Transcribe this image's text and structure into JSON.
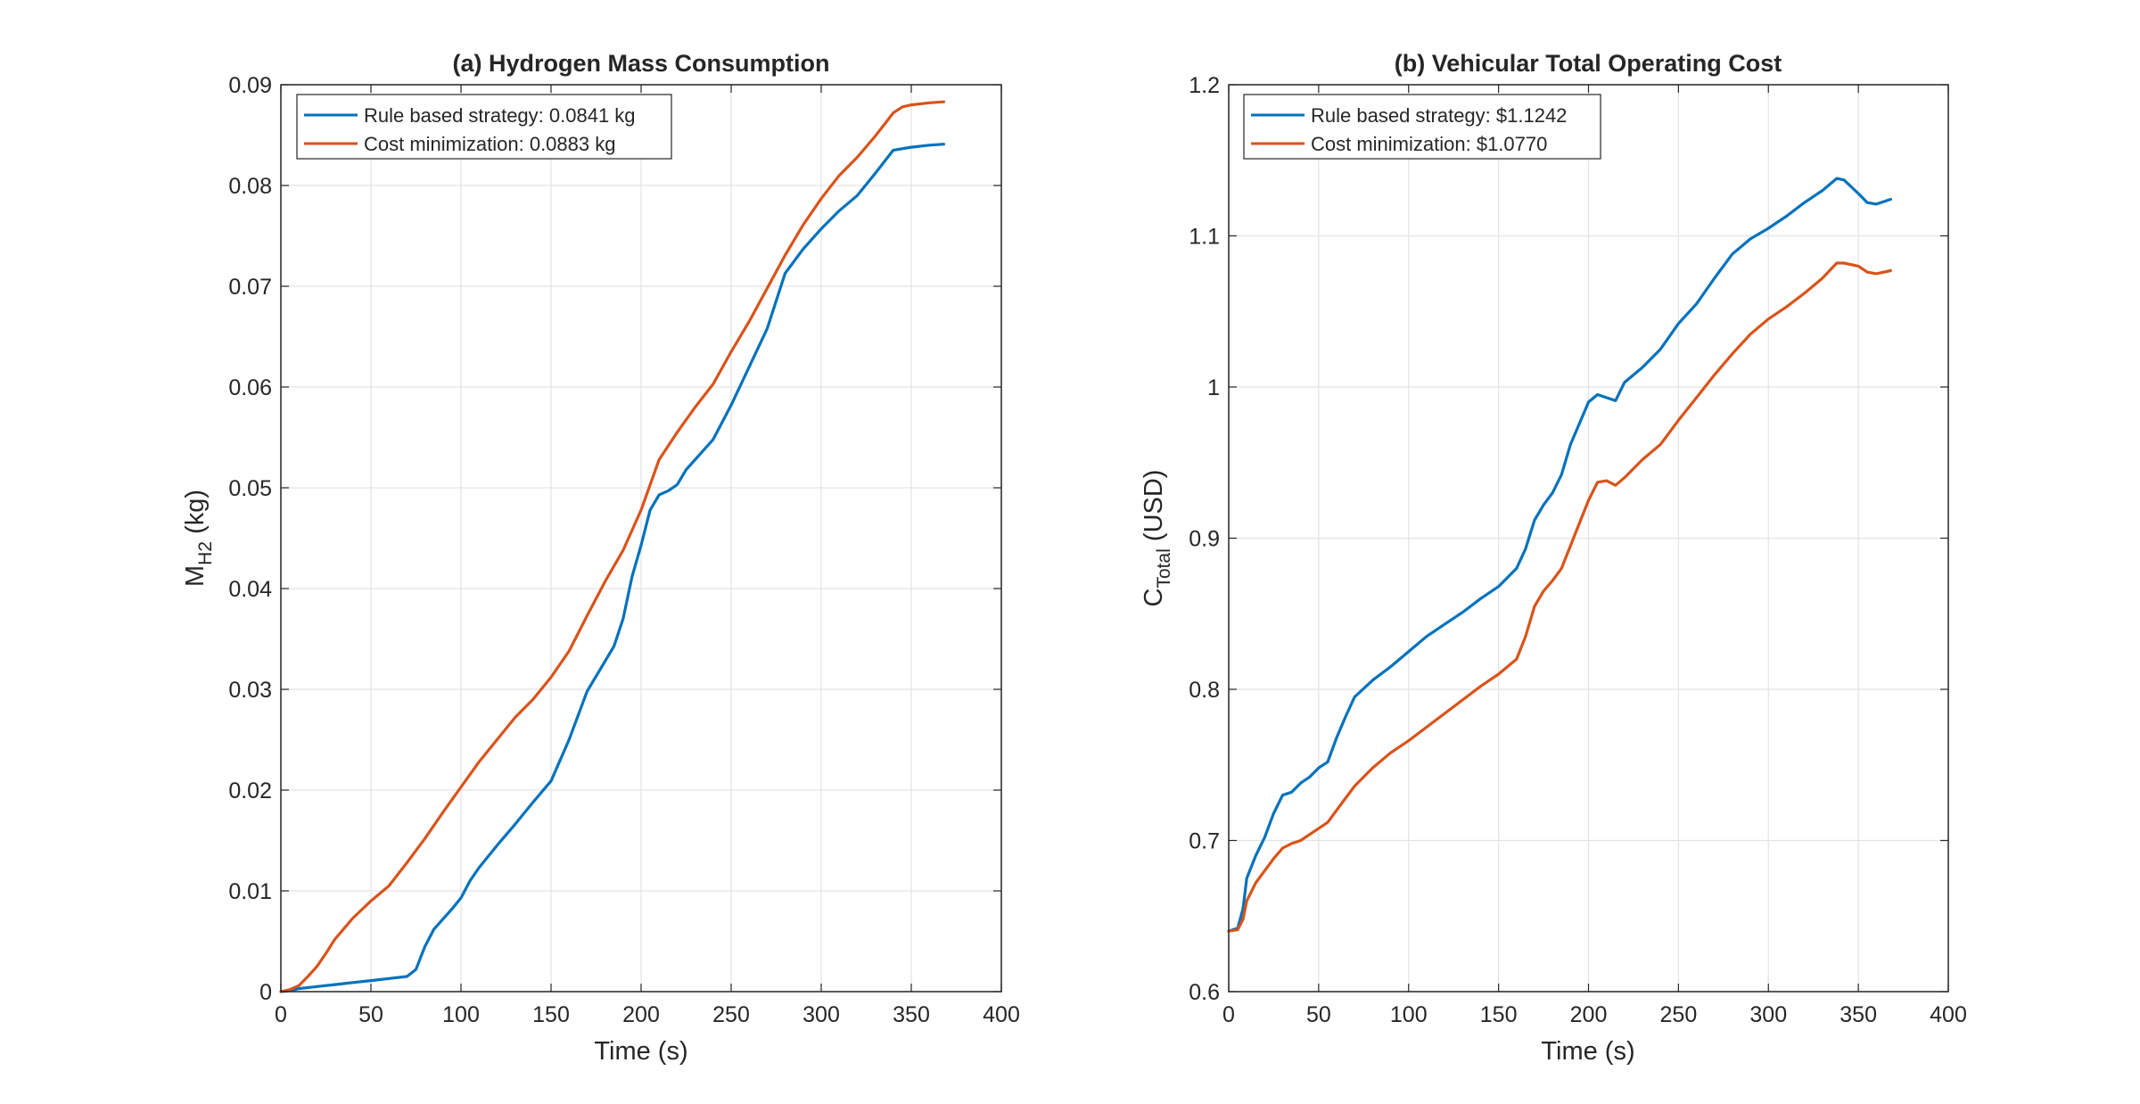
{
  "chart_data": [
    {
      "type": "line",
      "title": "(a) Hydrogen Mass Consumption",
      "xlabel": "Time (s)",
      "ylabel_main": "M",
      "ylabel_sub": "H2",
      "ylabel_unit": " (kg)",
      "xlim": [
        0,
        400
      ],
      "ylim": [
        0,
        0.09
      ],
      "xticks": [
        "0",
        "50",
        "100",
        "150",
        "200",
        "250",
        "300",
        "350",
        "400"
      ],
      "yticks": [
        "0",
        "0.01",
        "0.02",
        "0.03",
        "0.04",
        "0.05",
        "0.06",
        "0.07",
        "0.08",
        "0.09"
      ],
      "grid": true,
      "legend_position": "top-left",
      "series": [
        {
          "name": "Rule based strategy: 0.0841 kg",
          "color": "#0072BD",
          "x": [
            0,
            5,
            10,
            20,
            30,
            40,
            50,
            60,
            70,
            75,
            80,
            85,
            90,
            95,
            100,
            105,
            110,
            120,
            130,
            140,
            150,
            160,
            170,
            180,
            185,
            190,
            195,
            200,
            205,
            210,
            215,
            220,
            225,
            230,
            240,
            250,
            260,
            270,
            280,
            290,
            300,
            310,
            320,
            330,
            340,
            350,
            360,
            368
          ],
          "y": [
            0,
            0.0001,
            0.0003,
            0.0005,
            0.0007,
            0.0009,
            0.0011,
            0.0013,
            0.0015,
            0.0022,
            0.0045,
            0.0062,
            0.0072,
            0.0082,
            0.0093,
            0.011,
            0.0123,
            0.0145,
            0.0166,
            0.0188,
            0.0209,
            0.025,
            0.0298,
            0.0328,
            0.0343,
            0.037,
            0.0412,
            0.0443,
            0.0478,
            0.0493,
            0.0497,
            0.0503,
            0.0518,
            0.0528,
            0.0548,
            0.0582,
            0.062,
            0.0658,
            0.0713,
            0.0737,
            0.0757,
            0.0775,
            0.079,
            0.0812,
            0.0835,
            0.0838,
            0.084,
            0.0841
          ]
        },
        {
          "name": "Cost minimization: 0.0883 kg",
          "color": "#D95319",
          "x": [
            0,
            5,
            10,
            15,
            20,
            25,
            30,
            40,
            50,
            60,
            70,
            80,
            90,
            100,
            110,
            120,
            130,
            140,
            150,
            160,
            170,
            180,
            190,
            200,
            210,
            220,
            230,
            240,
            250,
            260,
            270,
            280,
            290,
            300,
            310,
            320,
            330,
            340,
            345,
            350,
            360,
            368
          ],
          "y": [
            0,
            0.0002,
            0.0006,
            0.0015,
            0.0025,
            0.0038,
            0.0052,
            0.0073,
            0.009,
            0.0105,
            0.0128,
            0.0152,
            0.0178,
            0.0203,
            0.0228,
            0.025,
            0.0272,
            0.029,
            0.0312,
            0.0338,
            0.0373,
            0.0407,
            0.0438,
            0.0478,
            0.0528,
            0.0555,
            0.058,
            0.0603,
            0.0635,
            0.0665,
            0.0698,
            0.0731,
            0.0761,
            0.0787,
            0.081,
            0.0828,
            0.0849,
            0.0872,
            0.0878,
            0.088,
            0.0882,
            0.0883
          ]
        }
      ]
    },
    {
      "type": "line",
      "title": "(b) Vehicular Total Operating Cost",
      "xlabel": "Time (s)",
      "ylabel_main": "C",
      "ylabel_sub": "Total",
      "ylabel_unit": " (USD)",
      "xlim": [
        0,
        400
      ],
      "ylim": [
        0.6,
        1.2
      ],
      "xticks": [
        "0",
        "50",
        "100",
        "150",
        "200",
        "250",
        "300",
        "350",
        "400"
      ],
      "yticks": [
        "0.6",
        "0.7",
        "0.8",
        "0.9",
        "1",
        "1.1",
        "1.2"
      ],
      "grid": true,
      "legend_position": "top-left",
      "series": [
        {
          "name": "Rule based strategy: $1.1242",
          "color": "#0072BD",
          "x": [
            0,
            5,
            8,
            10,
            15,
            20,
            25,
            30,
            35,
            40,
            45,
            50,
            55,
            60,
            65,
            70,
            80,
            90,
            100,
            110,
            120,
            130,
            140,
            150,
            160,
            165,
            170,
            175,
            180,
            185,
            190,
            195,
            200,
            205,
            210,
            215,
            220,
            230,
            240,
            250,
            260,
            270,
            280,
            290,
            300,
            310,
            320,
            330,
            338,
            342,
            350,
            355,
            360,
            368
          ],
          "y": [
            0.64,
            0.642,
            0.655,
            0.675,
            0.69,
            0.702,
            0.718,
            0.73,
            0.732,
            0.738,
            0.742,
            0.748,
            0.752,
            0.768,
            0.782,
            0.795,
            0.806,
            0.815,
            0.825,
            0.835,
            0.843,
            0.851,
            0.86,
            0.868,
            0.88,
            0.893,
            0.912,
            0.922,
            0.93,
            0.942,
            0.962,
            0.976,
            0.99,
            0.995,
            0.993,
            0.991,
            1.003,
            1.013,
            1.025,
            1.042,
            1.055,
            1.072,
            1.088,
            1.098,
            1.105,
            1.113,
            1.122,
            1.13,
            1.138,
            1.137,
            1.128,
            1.122,
            1.121,
            1.1242
          ]
        },
        {
          "name": "Cost minimization: $1.0770",
          "color": "#D95319",
          "x": [
            0,
            5,
            8,
            10,
            15,
            20,
            25,
            30,
            35,
            40,
            45,
            50,
            55,
            60,
            65,
            70,
            80,
            90,
            100,
            110,
            120,
            130,
            140,
            150,
            160,
            165,
            170,
            175,
            180,
            185,
            190,
            195,
            200,
            205,
            210,
            215,
            220,
            230,
            240,
            250,
            260,
            270,
            280,
            290,
            300,
            310,
            320,
            330,
            338,
            342,
            350,
            355,
            360,
            368
          ],
          "y": [
            0.64,
            0.641,
            0.648,
            0.66,
            0.672,
            0.68,
            0.688,
            0.695,
            0.698,
            0.7,
            0.704,
            0.708,
            0.712,
            0.72,
            0.728,
            0.736,
            0.748,
            0.758,
            0.766,
            0.775,
            0.784,
            0.793,
            0.802,
            0.81,
            0.82,
            0.835,
            0.855,
            0.865,
            0.872,
            0.88,
            0.895,
            0.91,
            0.925,
            0.937,
            0.938,
            0.935,
            0.94,
            0.952,
            0.962,
            0.978,
            0.993,
            1.008,
            1.022,
            1.035,
            1.045,
            1.053,
            1.062,
            1.072,
            1.082,
            1.082,
            1.08,
            1.076,
            1.075,
            1.077
          ]
        }
      ]
    }
  ]
}
